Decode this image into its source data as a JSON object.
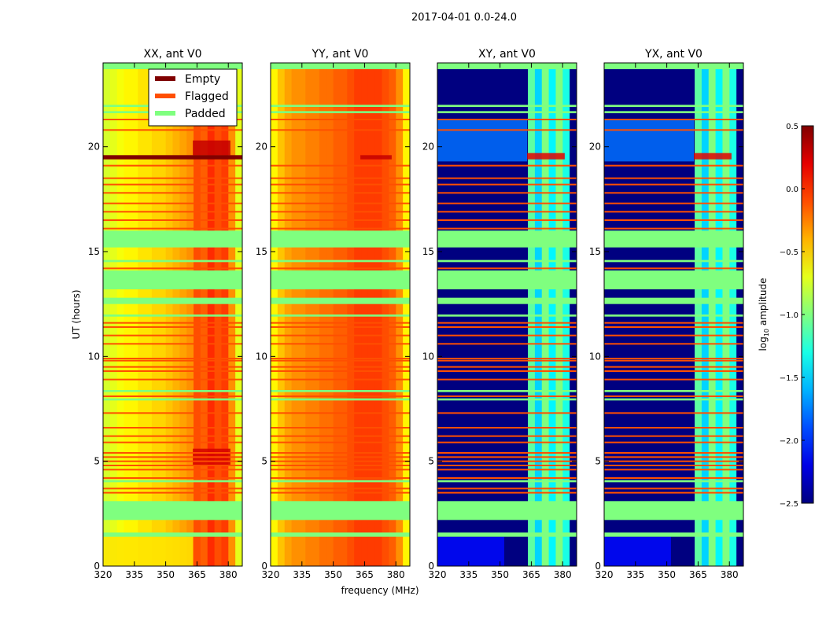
{
  "chart_data": {
    "type": "heatmap",
    "title": "2017-04-01 0.0-24.0",
    "xlabel": "frequency (MHz)",
    "ylabel": "UT (hours)",
    "colormap": "jet",
    "colorbar": {
      "label": "log10 amplitude",
      "label_main": "log",
      "label_sub": "10",
      "label_rest": " amplitude",
      "range": [
        -2.5,
        0.5
      ],
      "ticks": [
        0.5,
        0.0,
        -0.5,
        -1.0,
        -1.5,
        -2.0,
        -2.5
      ],
      "tick_labels": [
        "0.5",
        "0.0",
        "−0.5",
        "−1.0",
        "−1.5",
        "−2.0",
        "−2.5"
      ]
    },
    "xlim": [
      320,
      386.7
    ],
    "ylim": [
      0,
      24
    ],
    "xticks": [
      320,
      335,
      350,
      365,
      380
    ],
    "xtick_labels": [
      "320",
      "335",
      "350",
      "365",
      "380"
    ],
    "yticks": [
      0,
      5,
      10,
      15,
      20
    ],
    "ytick_labels": [
      "0",
      "5",
      "10",
      "15",
      "20"
    ],
    "legend": {
      "placement": "upper-right of first panel",
      "entries": [
        {
          "label": "Empty",
          "color": "#800000"
        },
        {
          "label": "Flagged",
          "color": "#ff4f00"
        },
        {
          "label": "Padded",
          "color": "#7fff7f"
        }
      ]
    },
    "flagged_rows": [
      21.3,
      20.8,
      19.1,
      18.5,
      18.2,
      17.8,
      17.3,
      16.9,
      16.5,
      16.1,
      14.2,
      11.6,
      11.4,
      11.0,
      10.6,
      9.9,
      9.8,
      9.5,
      9.3,
      8.9,
      8.1,
      7.3,
      6.6,
      6.2,
      5.9,
      5.4,
      5.2,
      5.0,
      4.8,
      4.6,
      4.2,
      3.7,
      3.5
    ],
    "padded_rows": [
      [
        23.7,
        24.0
      ],
      [
        21.9,
        22.0
      ],
      [
        21.6,
        21.7
      ],
      [
        15.2,
        16.0
      ],
      [
        14.5,
        14.6
      ],
      [
        13.2,
        14.1
      ],
      [
        12.5,
        12.8
      ],
      [
        11.9,
        12.0
      ],
      [
        8.3,
        8.4
      ],
      [
        7.9,
        8.0
      ],
      [
        4.0,
        4.1
      ],
      [
        3.0,
        3.1
      ],
      [
        2.2,
        3.0
      ],
      [
        1.4,
        1.6
      ]
    ],
    "panels": [
      {
        "title": "XX, ant V0",
        "base": [
          -0.75,
          -0.7,
          -0.65,
          -0.6,
          -0.6,
          -0.55,
          -0.55,
          -0.5,
          -0.5,
          -0.45,
          -0.4,
          -0.35,
          -0.3,
          -0.1,
          -0.15,
          0.0,
          -0.1,
          -0.05,
          -0.3,
          -0.7
        ],
        "regions": [
          {
            "t0": 19.6,
            "t1": 20.3,
            "f0": 363,
            "f1": 381,
            "value": 0.3
          },
          {
            "t0": 4.8,
            "t1": 5.6,
            "f0": 363,
            "f1": 381,
            "value": 0.25
          },
          {
            "t0": 0,
            "t1": 1.4,
            "f0": 320,
            "f1": 363,
            "value": -0.55
          }
        ],
        "empty_rows": [
          [
            19.4,
            19.6
          ]
        ]
      },
      {
        "title": "YY, ant V0",
        "base": [
          -0.6,
          -0.45,
          -0.35,
          -0.3,
          -0.3,
          -0.25,
          -0.25,
          -0.2,
          -0.2,
          -0.15,
          -0.15,
          -0.1,
          -0.05,
          -0.05,
          -0.05,
          -0.05,
          -0.1,
          -0.15,
          -0.3,
          -0.6
        ],
        "regions": [
          {
            "t0": 19.4,
            "t1": 19.6,
            "f0": 363,
            "f1": 378,
            "value": 0.3
          }
        ],
        "empty_rows": []
      },
      {
        "title": "XY, ant V0",
        "base": [
          -2.5,
          -2.5,
          -2.5,
          -2.5,
          -2.5,
          -2.5,
          -2.5,
          -2.5,
          -2.5,
          -2.5,
          -2.5,
          -2.5,
          -2.5,
          -1.1,
          -1.5,
          -1.0,
          -1.4,
          -1.0,
          -1.3,
          -2.5
        ],
        "regions": [
          {
            "t0": 19.3,
            "t1": 21.3,
            "f0": 320,
            "f1": 363,
            "value": -1.8
          },
          {
            "t0": 0,
            "t1": 1.4,
            "f0": 320,
            "f1": 352,
            "value": -2.1
          },
          {
            "t0": 19.4,
            "t1": 19.7,
            "f0": 363,
            "f1": 381,
            "value": 0.2
          }
        ],
        "empty_rows": []
      },
      {
        "title": "YX, ant V0",
        "base": [
          -2.5,
          -2.5,
          -2.5,
          -2.5,
          -2.5,
          -2.5,
          -2.5,
          -2.5,
          -2.5,
          -2.5,
          -2.5,
          -2.5,
          -2.5,
          -1.1,
          -1.5,
          -1.0,
          -1.4,
          -1.0,
          -1.3,
          -2.5
        ],
        "regions": [
          {
            "t0": 19.3,
            "t1": 21.3,
            "f0": 320,
            "f1": 363,
            "value": -1.8
          },
          {
            "t0": 0,
            "t1": 1.4,
            "f0": 320,
            "f1": 352,
            "value": -2.1
          },
          {
            "t0": 19.4,
            "t1": 19.7,
            "f0": 363,
            "f1": 381,
            "value": 0.2
          }
        ],
        "empty_rows": []
      }
    ]
  }
}
